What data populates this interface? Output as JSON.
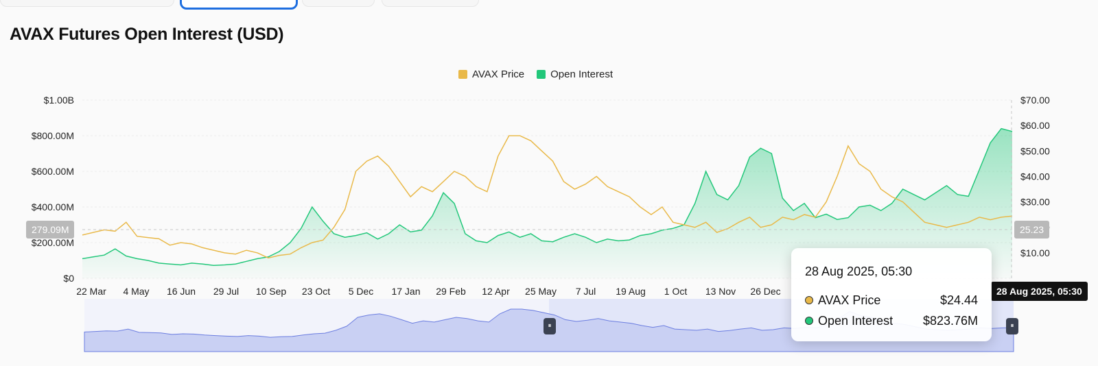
{
  "header": {
    "title": "AVAX Futures Open Interest (USD)"
  },
  "colors": {
    "price": "#e9b949",
    "oi": "#22c77a",
    "oi_fill": "#22c77a",
    "navigator": "#6b7de0"
  },
  "legend": [
    {
      "label": "AVAX Price",
      "color": "#e9b949"
    },
    {
      "label": "Open Interest",
      "color": "#22c77a"
    }
  ],
  "chart_data": {
    "type": "line",
    "title": "AVAX Futures Open Interest (USD)",
    "x_tick_labels": [
      "22 Mar",
      "4 May",
      "16 Jun",
      "29 Jul",
      "10 Sep",
      "23 Oct",
      "5 Dec",
      "17 Jan",
      "29 Feb",
      "12 Apr",
      "25 May",
      "7 Jul",
      "19 Aug",
      "1 Oct",
      "13 Nov",
      "26 Dec"
    ],
    "y_left_ticks": [
      "$0",
      "$200.00M",
      "$400.00M",
      "$600.00M",
      "$800.00M",
      "$1.00B"
    ],
    "y_left_range": [
      0,
      1000000000
    ],
    "y_right_ticks": [
      "$10.00",
      "$20.00",
      "$30.00",
      "$40.00",
      "$50.00",
      "$60.00",
      "$70.00"
    ],
    "y_right_range": [
      0,
      70
    ],
    "grid": true,
    "legend_position": "top-center",
    "series": [
      {
        "name": "AVAX Price",
        "axis": "right",
        "values": [
          17,
          18,
          19,
          18.5,
          22,
          16.5,
          16,
          15.5,
          13,
          14,
          13.5,
          12,
          11,
          10,
          9.5,
          11,
          10,
          8,
          9,
          9.5,
          12,
          14,
          15,
          20,
          27,
          42,
          46,
          48,
          44,
          38,
          32,
          36,
          34,
          38,
          42,
          40,
          36,
          34,
          48,
          56,
          56,
          54,
          50,
          46,
          38,
          35,
          37,
          40,
          36,
          34,
          32,
          28,
          25,
          28,
          22,
          21,
          20,
          22,
          18,
          19.5,
          22,
          24,
          20,
          21,
          24,
          23,
          25,
          24,
          30,
          40,
          52,
          45,
          42,
          35,
          32,
          30,
          26,
          22,
          21,
          20,
          21,
          22,
          24,
          23,
          24,
          24.44
        ]
      },
      {
        "name": "Open Interest",
        "axis": "left",
        "values": [
          110000000,
          120000000,
          130000000,
          165000000,
          125000000,
          110000000,
          100000000,
          85000000,
          80000000,
          75000000,
          85000000,
          80000000,
          72000000,
          75000000,
          80000000,
          95000000,
          110000000,
          120000000,
          150000000,
          200000000,
          280000000,
          400000000,
          320000000,
          250000000,
          230000000,
          240000000,
          255000000,
          220000000,
          250000000,
          300000000,
          260000000,
          270000000,
          350000000,
          480000000,
          420000000,
          250000000,
          210000000,
          200000000,
          240000000,
          260000000,
          230000000,
          250000000,
          210000000,
          205000000,
          230000000,
          250000000,
          230000000,
          200000000,
          220000000,
          210000000,
          215000000,
          240000000,
          250000000,
          270000000,
          280000000,
          300000000,
          420000000,
          600000000,
          470000000,
          440000000,
          520000000,
          680000000,
          730000000,
          700000000,
          450000000,
          380000000,
          420000000,
          340000000,
          360000000,
          330000000,
          340000000,
          400000000,
          410000000,
          380000000,
          420000000,
          500000000,
          470000000,
          440000000,
          480000000,
          520000000,
          470000000,
          460000000,
          610000000,
          760000000,
          840000000,
          823760000
        ]
      }
    ]
  },
  "crosshair": {
    "left_value_label": "279.09M",
    "right_value_label": "25.23",
    "date_label": "28 Aug 2025, 05:30"
  },
  "tooltip": {
    "date": "28 Aug 2025, 05:30",
    "rows": [
      {
        "label": "AVAX Price",
        "value": "$24.44",
        "color": "#e9b949"
      },
      {
        "label": "Open Interest",
        "value": "$823.76M",
        "color": "#22c77a"
      }
    ]
  },
  "navigator": {
    "selected_start_fraction": 0.5,
    "selected_end_fraction": 1.0,
    "handle_glyph": "⏸"
  }
}
